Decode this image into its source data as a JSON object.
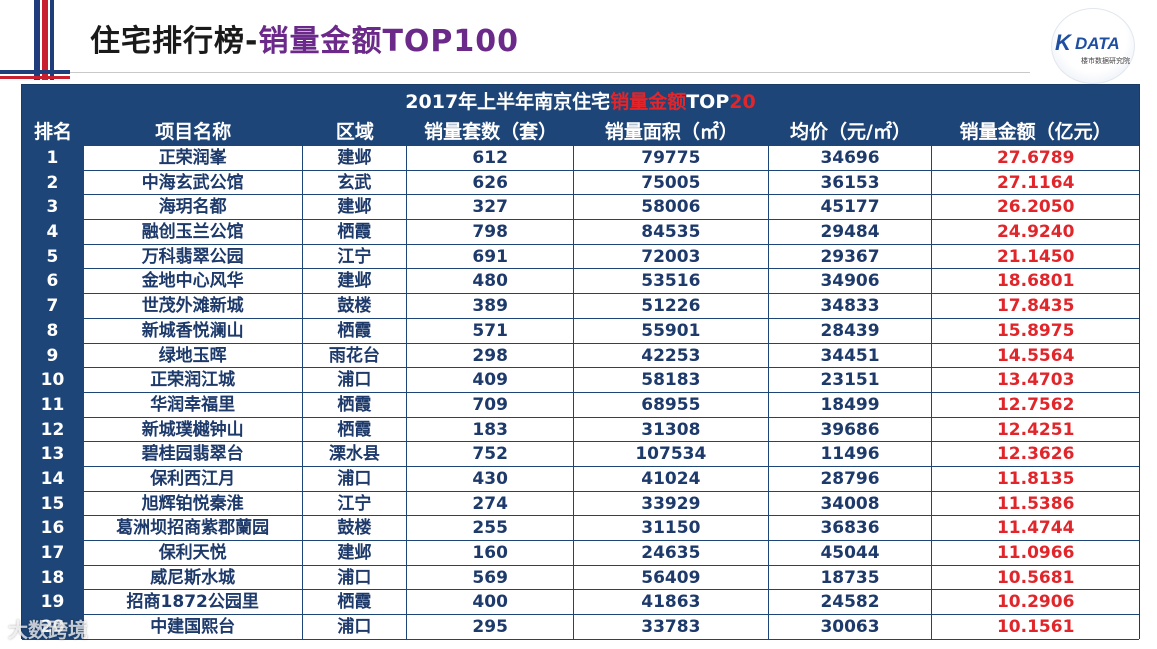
{
  "page": {
    "title_prefix": "住宅排行榜-",
    "title_highlight": "销量金额TOP100"
  },
  "logo": {
    "mark": "K",
    "brand": "DATA",
    "subtitle": "楼市数据研究院"
  },
  "table": {
    "title_prefix": "2017年上半年南京住宅",
    "title_highlight": "销量金额",
    "title_suffix_white": "TOP",
    "title_suffix_red": "20",
    "headers": [
      "排名",
      "项目名称",
      "区域",
      "销量套数（套）",
      "销量面积（㎡）",
      "均价（元/㎡）",
      "销量金额（亿元）"
    ],
    "rows": [
      [
        "1",
        "正荣润峯",
        "建邺",
        "612",
        "79775",
        "34696",
        "27.6789"
      ],
      [
        "2",
        "中海玄武公馆",
        "玄武",
        "626",
        "75005",
        "36153",
        "27.1164"
      ],
      [
        "3",
        "海玥名都",
        "建邺",
        "327",
        "58006",
        "45177",
        "26.2050"
      ],
      [
        "4",
        "融创玉兰公馆",
        "栖霞",
        "798",
        "84535",
        "29484",
        "24.9240"
      ],
      [
        "5",
        "万科翡翠公园",
        "江宁",
        "691",
        "72003",
        "29367",
        "21.1450"
      ],
      [
        "6",
        "金地中心风华",
        "建邺",
        "480",
        "53516",
        "34906",
        "18.6801"
      ],
      [
        "7",
        "世茂外滩新城",
        "鼓楼",
        "389",
        "51226",
        "34833",
        "17.8435"
      ],
      [
        "8",
        "新城香悦澜山",
        "栖霞",
        "571",
        "55901",
        "28439",
        "15.8975"
      ],
      [
        "9",
        "绿地玉晖",
        "雨花台",
        "298",
        "42253",
        "34451",
        "14.5564"
      ],
      [
        "10",
        "正荣润江城",
        "浦口",
        "409",
        "58183",
        "23151",
        "13.4703"
      ],
      [
        "11",
        "华润幸福里",
        "栖霞",
        "709",
        "68955",
        "18499",
        "12.7562"
      ],
      [
        "12",
        "新城璞樾钟山",
        "栖霞",
        "183",
        "31308",
        "39686",
        "12.4251"
      ],
      [
        "13",
        "碧桂园翡翠台",
        "溧水县",
        "752",
        "107534",
        "11496",
        "12.3626"
      ],
      [
        "14",
        "保利西江月",
        "浦口",
        "430",
        "41024",
        "28796",
        "11.8135"
      ],
      [
        "15",
        "旭辉铂悦秦淮",
        "江宁",
        "274",
        "33929",
        "34008",
        "11.5386"
      ],
      [
        "16",
        "葛洲坝招商紫郡蘭园",
        "鼓楼",
        "255",
        "31150",
        "36836",
        "11.4744"
      ],
      [
        "17",
        "保利天悦",
        "建邺",
        "160",
        "24635",
        "45044",
        "11.0966"
      ],
      [
        "18",
        "威尼斯水城",
        "浦口",
        "569",
        "56409",
        "18735",
        "10.5681"
      ],
      [
        "19",
        "招商1872公园里",
        "栖霞",
        "400",
        "41863",
        "24582",
        "10.2906"
      ],
      [
        "20",
        "中建国熙台",
        "浦口",
        "295",
        "33783",
        "30063",
        "10.1561"
      ]
    ]
  },
  "watermark": "大数跨境",
  "colors": {
    "table_header_bg": "#1e4577",
    "amount_red": "#e0262b",
    "title_purple": "#6b2a8a"
  }
}
